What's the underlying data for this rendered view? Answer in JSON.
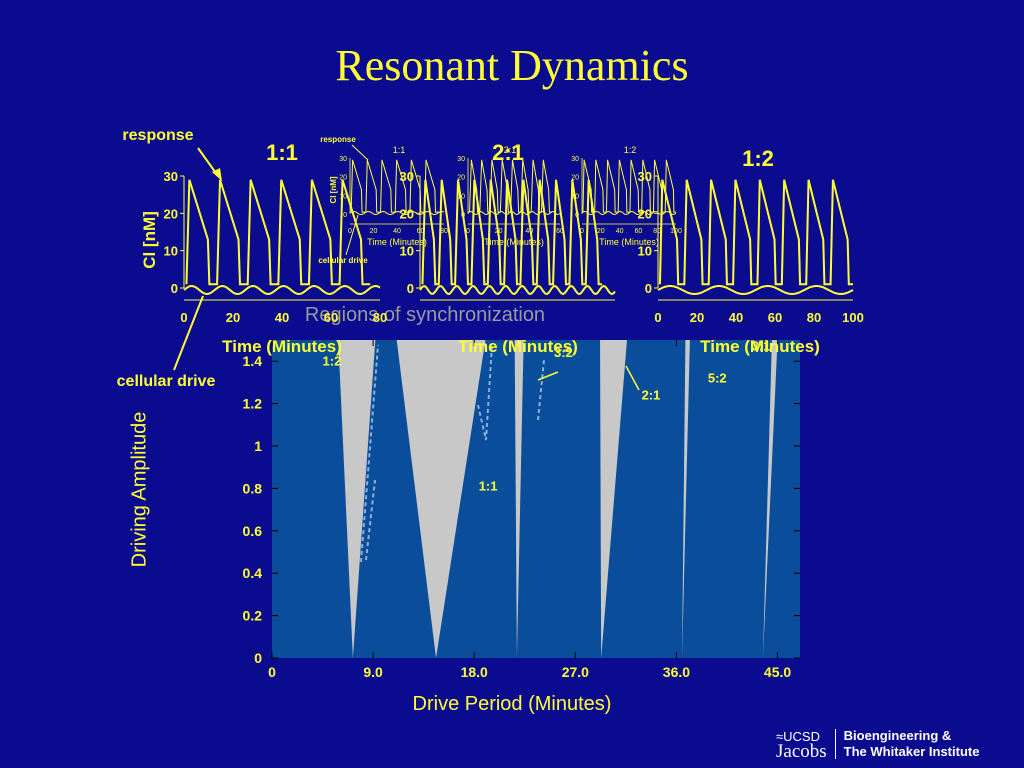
{
  "slide": {
    "title": "Resonant Dynamics"
  },
  "colors": {
    "background": "#0b0b8f",
    "accent": "#ffff33",
    "plot_bg": "#0a4d9a",
    "region": "#c8c8c8"
  },
  "traces_panel": {
    "response_label": "response",
    "drive_label": "cellular drive",
    "ylabel": "Cl [nM]",
    "xlabel": "Time (Minutes)",
    "panels": [
      {
        "label": "1:1",
        "x_ticks": [
          "0",
          "20",
          "40",
          "60",
          "80"
        ],
        "y_ticks": [
          "0",
          "10",
          "20",
          "30"
        ]
      },
      {
        "label": "2:1",
        "x_ticks": [],
        "y_ticks": [
          "0",
          "10",
          "20",
          "30"
        ]
      },
      {
        "label": "1:2",
        "x_ticks": [
          "0",
          "20",
          "40",
          "60",
          "80",
          "100"
        ],
        "y_ticks": [
          "0",
          "10",
          "20",
          "30"
        ]
      }
    ]
  },
  "inset": {
    "response_label": "response",
    "ylabel": "Cl [nM]",
    "drive_label": "cellular drive",
    "panels": [
      {
        "label": "1:1",
        "x_ticks": [
          "0",
          "20",
          "40",
          "60",
          "80"
        ],
        "y_ticks": [
          "0",
          "10",
          "20",
          "30"
        ],
        "xlabel": "Time (Minutes)"
      },
      {
        "label": "2:1",
        "x_ticks": [
          "0",
          "20",
          "40",
          "60"
        ],
        "y_ticks": [
          "0",
          "10",
          "20",
          "30"
        ],
        "xlabel": "Time (Minutes)"
      },
      {
        "label": "1:2",
        "x_ticks": [
          "0",
          "20",
          "40",
          "60",
          "80",
          "100"
        ],
        "y_ticks": [
          "0",
          "10",
          "20",
          "30"
        ],
        "xlabel": "Time (Minutes)"
      }
    ]
  },
  "chart_data": {
    "type": "area",
    "title": "Regions of synchronization",
    "xlabel": "Drive Period (Minutes)",
    "ylabel": "Driving Amplitude",
    "xlim": [
      0,
      47
    ],
    "ylim": [
      0,
      1.5
    ],
    "x_ticks": [
      "0",
      "9.0",
      "18.0",
      "27.0",
      "36.0",
      "45.0"
    ],
    "x_tick_values": [
      0,
      9,
      18,
      27,
      36,
      45
    ],
    "y_ticks": [
      "0",
      "0.2",
      "0.4",
      "0.6",
      "0.8",
      "1",
      "1.2",
      "1.4"
    ],
    "y_tick_values": [
      0,
      0.2,
      0.4,
      0.6,
      0.8,
      1,
      1.2,
      1.4
    ],
    "regions": [
      {
        "name": "1:2",
        "tip_x": 7.2,
        "top_left_x": 5.9,
        "top_right_x": 9.2
      },
      {
        "name": "1:1",
        "tip_x": 14.6,
        "top_left_x": 11.1,
        "top_right_x": 19.0
      },
      {
        "name": "3:2",
        "tip_x": 21.8,
        "top_left_x": 21.6,
        "top_right_x": 22.4
      },
      {
        "name": "2:1",
        "tip_x": 29.3,
        "top_left_x": 29.2,
        "top_right_x": 31.6
      },
      {
        "name": "5:2",
        "tip_x": 36.5,
        "top_left_x": 36.8,
        "top_right_x": 37.2
      },
      {
        "name": "3:1",
        "tip_x": 43.7,
        "top_left_x": 44.5,
        "top_right_x": 45.0
      }
    ],
    "region_labels": [
      {
        "name": "1:2",
        "x": 4.5,
        "y": 1.38
      },
      {
        "name": "1:1",
        "x": 18.4,
        "y": 0.79
      },
      {
        "name": "3:2",
        "x": 25.1,
        "y": 1.42
      },
      {
        "name": "2:1",
        "x": 32.9,
        "y": 1.22
      },
      {
        "name": "5:2",
        "x": 38.8,
        "y": 1.3
      },
      {
        "name": "3:1",
        "x": 42.7,
        "y": 1.45
      }
    ]
  }
}
